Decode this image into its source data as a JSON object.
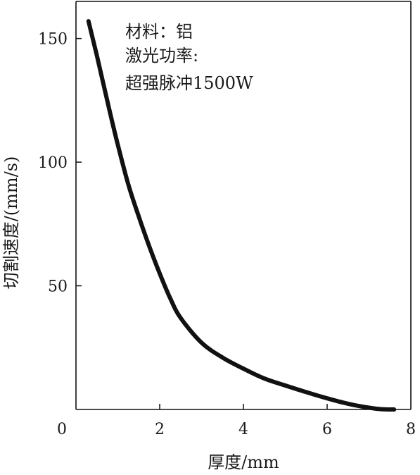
{
  "chart_data": {
    "type": "line",
    "xlabel": "厚度/mm",
    "ylabel": "切割速度/(mm/s)",
    "xlim": [
      0,
      8
    ],
    "ylim": [
      0,
      165
    ],
    "x_ticks": [
      {
        "value": 0,
        "label": "0"
      },
      {
        "value": 2,
        "label": "2"
      },
      {
        "value": 4,
        "label": "4"
      },
      {
        "value": 6,
        "label": "6"
      },
      {
        "value": 8,
        "label": "8"
      }
    ],
    "y_ticks": [
      {
        "value": 50,
        "label": "50"
      },
      {
        "value": 100,
        "label": "100"
      },
      {
        "value": 150,
        "label": "150"
      }
    ],
    "annotation": [
      "材料：铝",
      "激光功率:",
      "超强脉冲1500W"
    ],
    "grid": false,
    "series": [
      {
        "color": "#111111",
        "x": [
          0.3,
          0.5,
          0.8,
          1.0,
          1.25,
          1.5,
          1.75,
          2.0,
          2.25,
          2.5,
          3.0,
          3.5,
          4.0,
          4.5,
          5.0,
          5.5,
          6.0,
          6.5,
          7.0,
          7.3,
          7.6
        ],
        "y": [
          157,
          143,
          121,
          107,
          91,
          78,
          66,
          55,
          45,
          37,
          27,
          21,
          16.5,
          12.5,
          9.7,
          7,
          4.5,
          2.3,
          0.7,
          0.1,
          0
        ]
      }
    ]
  }
}
